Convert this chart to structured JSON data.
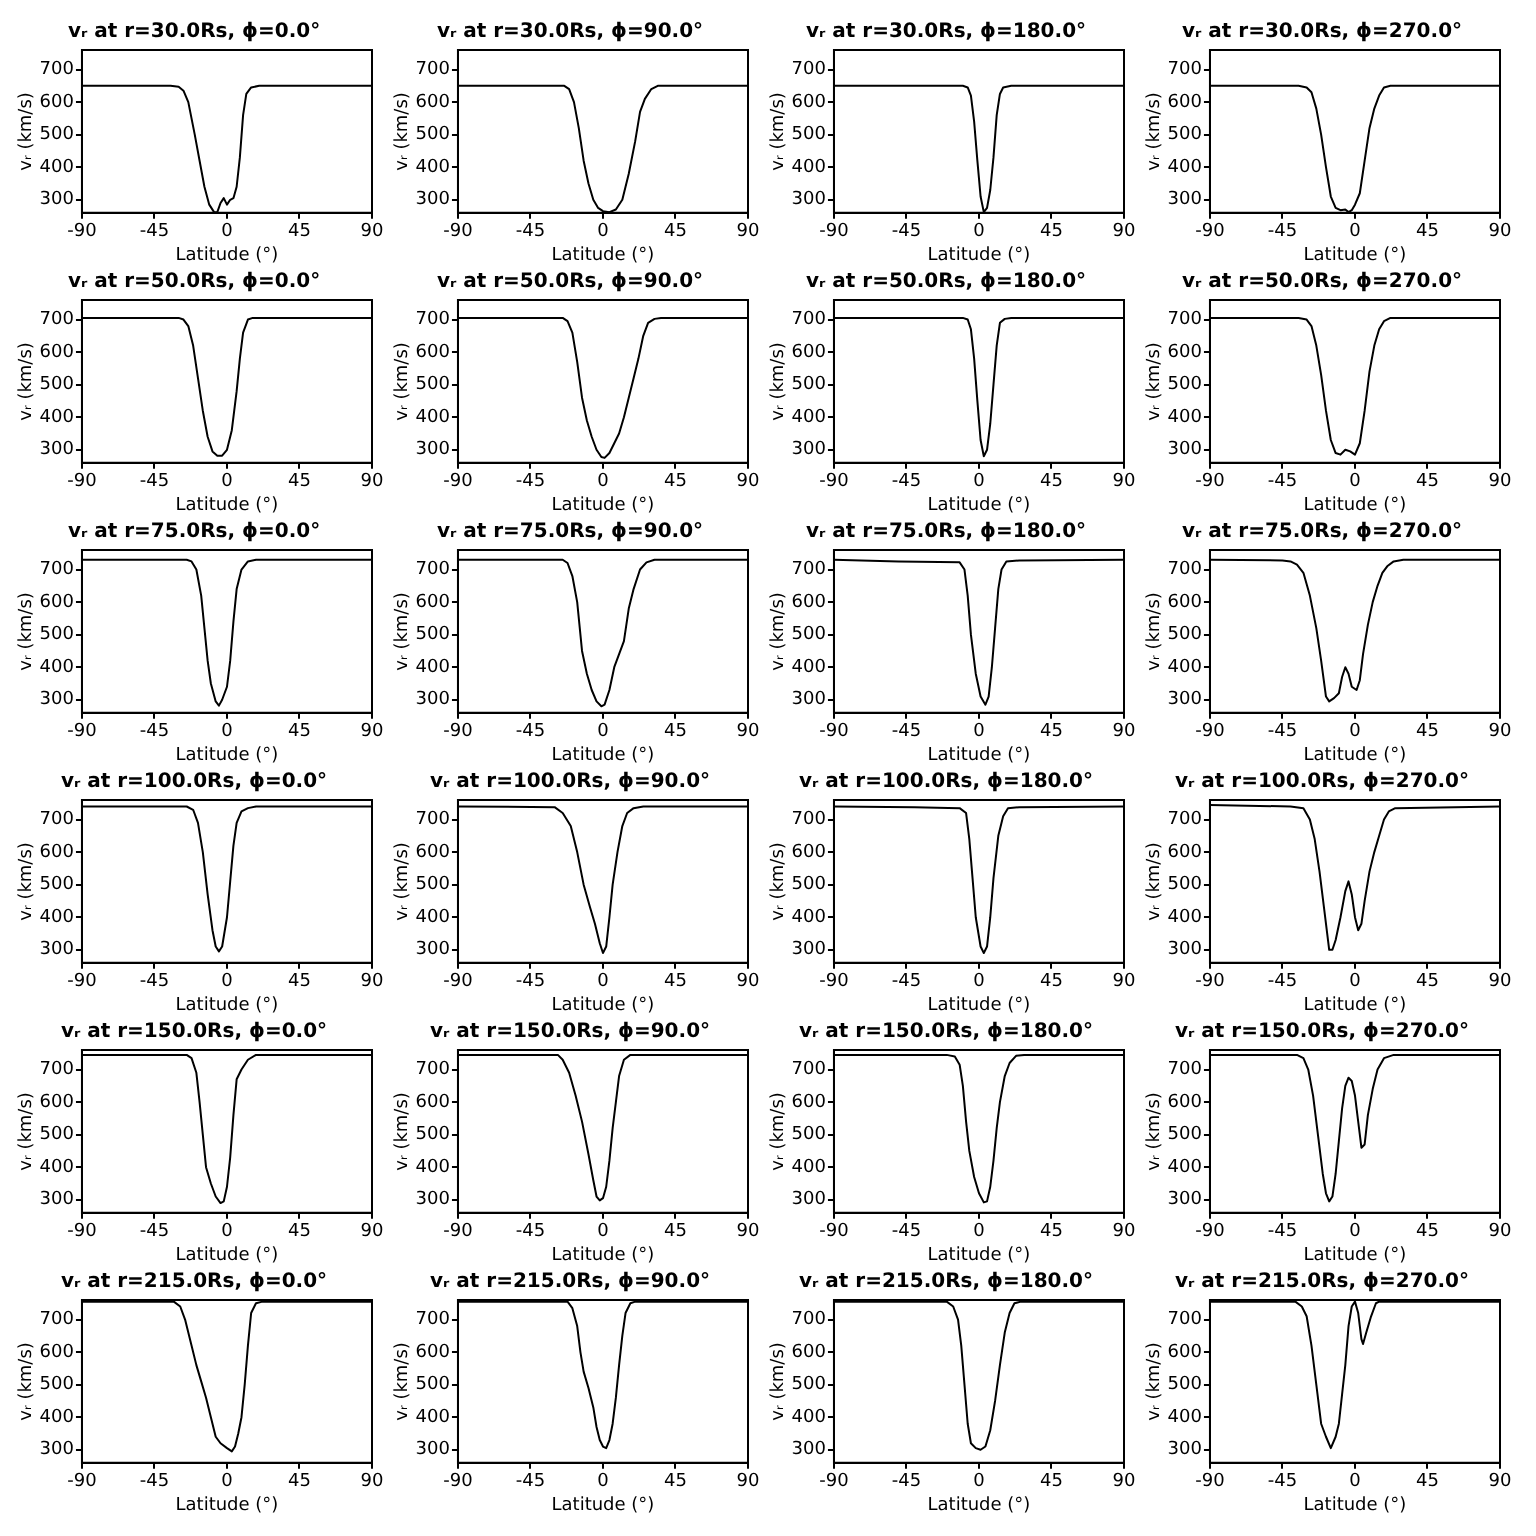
{
  "chart_data": [
    {
      "type": "line",
      "title": "vᵣ at r=30.0Rs, ϕ=0.0°",
      "xlabel": "Latitude (°)",
      "ylabel": "vᵣ (km/s)",
      "xlim": [
        -90,
        90
      ],
      "xticks": [
        -90,
        -45,
        0,
        45,
        90
      ],
      "ylim": [
        260,
        760
      ],
      "yticks": [
        300,
        400,
        500,
        600,
        700
      ],
      "color": "#000000",
      "x": [
        -90,
        -35,
        -30,
        -27,
        -24,
        -20,
        -17,
        -14,
        -11,
        -8,
        -6,
        -4,
        -2,
        0,
        2,
        4,
        6,
        8,
        10,
        12,
        15,
        20,
        90
      ],
      "values": [
        650,
        650,
        647,
        635,
        600,
        500,
        420,
        340,
        285,
        262,
        262,
        290,
        305,
        285,
        300,
        305,
        340,
        430,
        560,
        625,
        645,
        650,
        650
      ]
    },
    {
      "type": "line",
      "title": "vᵣ at r=30.0Rs, ϕ=90.0°",
      "xlabel": "Latitude (°)",
      "ylabel": "vᵣ (km/s)",
      "xlim": [
        -90,
        90
      ],
      "xticks": [
        -90,
        -45,
        0,
        45,
        90
      ],
      "ylim": [
        260,
        760
      ],
      "yticks": [
        300,
        400,
        500,
        600,
        700
      ],
      "color": "#000000",
      "x": [
        -90,
        -24,
        -21,
        -18,
        -15,
        -12,
        -9,
        -6,
        -3,
        0,
        4,
        8,
        12,
        16,
        20,
        23,
        26,
        30,
        34,
        90
      ],
      "values": [
        650,
        650,
        640,
        600,
        520,
        420,
        350,
        300,
        275,
        265,
        262,
        270,
        300,
        380,
        480,
        570,
        610,
        640,
        650,
        650
      ]
    },
    {
      "type": "line",
      "title": "vᵣ at r=30.0Rs, ϕ=180.0°",
      "xlabel": "Latitude (°)",
      "ylabel": "vᵣ (km/s)",
      "xlim": [
        -90,
        90
      ],
      "xticks": [
        -90,
        -45,
        0,
        45,
        90
      ],
      "ylim": [
        260,
        760
      ],
      "yticks": [
        300,
        400,
        500,
        600,
        700
      ],
      "color": "#000000",
      "x": [
        -90,
        -10,
        -7,
        -5,
        -3,
        -1,
        1,
        3,
        5,
        7,
        9,
        11,
        13,
        15,
        20,
        90
      ],
      "values": [
        650,
        650,
        645,
        620,
        540,
        420,
        310,
        262,
        275,
        330,
        430,
        560,
        625,
        645,
        650,
        650
      ]
    },
    {
      "type": "line",
      "title": "vᵣ at r=30.0Rs, ϕ=270.0°",
      "xlabel": "Latitude (°)",
      "ylabel": "vᵣ (km/s)",
      "xlim": [
        -90,
        90
      ],
      "xticks": [
        -90,
        -45,
        0,
        45,
        90
      ],
      "ylim": [
        260,
        760
      ],
      "yticks": [
        300,
        400,
        500,
        600,
        700
      ],
      "color": "#000000",
      "x": [
        -90,
        -35,
        -30,
        -27,
        -24,
        -21,
        -18,
        -15,
        -12,
        -9,
        -6,
        -4,
        -2,
        0,
        3,
        6,
        9,
        12,
        15,
        18,
        22,
        90
      ],
      "values": [
        650,
        650,
        645,
        630,
        580,
        500,
        400,
        310,
        275,
        268,
        270,
        262,
        268,
        285,
        320,
        420,
        520,
        580,
        620,
        645,
        650,
        650
      ]
    },
    {
      "type": "line",
      "title": "vᵣ at r=50.0Rs, ϕ=0.0°",
      "xlabel": "Latitude (°)",
      "ylabel": "vᵣ (km/s)",
      "xlim": [
        -90,
        90
      ],
      "xticks": [
        -90,
        -45,
        0,
        45,
        90
      ],
      "ylim": [
        260,
        760
      ],
      "yticks": [
        300,
        400,
        500,
        600,
        700
      ],
      "color": "#000000",
      "x": [
        -90,
        -30,
        -27,
        -24,
        -21,
        -18,
        -15,
        -12,
        -9,
        -6,
        -3,
        0,
        3,
        6,
        8,
        10,
        13,
        16,
        90
      ],
      "values": [
        705,
        705,
        700,
        680,
        620,
        520,
        420,
        340,
        295,
        282,
        282,
        300,
        360,
        480,
        580,
        660,
        700,
        705,
        705
      ]
    },
    {
      "type": "line",
      "title": "vᵣ at r=50.0Rs, ϕ=90.0°",
      "xlabel": "Latitude (°)",
      "ylabel": "vᵣ (km/s)",
      "xlim": [
        -90,
        90
      ],
      "xticks": [
        -90,
        -45,
        0,
        45,
        90
      ],
      "ylim": [
        260,
        760
      ],
      "yticks": [
        300,
        400,
        500,
        600,
        700
      ],
      "color": "#000000",
      "x": [
        -90,
        -25,
        -22,
        -19,
        -16,
        -13,
        -10,
        -7,
        -4,
        -1,
        1,
        4,
        7,
        10,
        13,
        16,
        19,
        22,
        25,
        28,
        32,
        36,
        90
      ],
      "values": [
        705,
        705,
        695,
        660,
        570,
        460,
        390,
        340,
        300,
        278,
        275,
        290,
        320,
        350,
        400,
        460,
        520,
        580,
        650,
        690,
        702,
        705,
        705
      ]
    },
    {
      "type": "line",
      "title": "vᵣ at r=50.0Rs, ϕ=180.0°",
      "xlabel": "Latitude (°)",
      "ylabel": "vᵣ (km/s)",
      "xlim": [
        -90,
        90
      ],
      "xticks": [
        -90,
        -45,
        0,
        45,
        90
      ],
      "ylim": [
        260,
        760
      ],
      "yticks": [
        300,
        400,
        500,
        600,
        700
      ],
      "color": "#000000",
      "x": [
        -90,
        -10,
        -7,
        -5,
        -3,
        -1,
        1,
        3,
        5,
        7,
        9,
        11,
        13,
        16,
        20,
        90
      ],
      "values": [
        705,
        705,
        700,
        670,
        580,
        450,
        330,
        280,
        300,
        380,
        500,
        620,
        690,
        702,
        705,
        705
      ]
    },
    {
      "type": "line",
      "title": "vᵣ at r=50.0Rs, ϕ=270.0°",
      "xlabel": "Latitude (°)",
      "ylabel": "vᵣ (km/s)",
      "xlim": [
        -90,
        90
      ],
      "xticks": [
        -90,
        -45,
        0,
        45,
        90
      ],
      "ylim": [
        260,
        760
      ],
      "yticks": [
        300,
        400,
        500,
        600,
        700
      ],
      "color": "#000000",
      "x": [
        -90,
        -35,
        -30,
        -27,
        -24,
        -21,
        -18,
        -15,
        -12,
        -9,
        -6,
        -3,
        0,
        3,
        6,
        9,
        12,
        15,
        18,
        22,
        90
      ],
      "values": [
        705,
        705,
        700,
        680,
        620,
        530,
        420,
        330,
        290,
        285,
        300,
        295,
        285,
        320,
        420,
        540,
        620,
        670,
        695,
        705,
        705
      ]
    },
    {
      "type": "line",
      "title": "vᵣ at r=75.0Rs, ϕ=0.0°",
      "xlabel": "Latitude (°)",
      "ylabel": "vᵣ (km/s)",
      "xlim": [
        -90,
        90
      ],
      "xticks": [
        -90,
        -45,
        0,
        45,
        90
      ],
      "ylim": [
        260,
        760
      ],
      "yticks": [
        300,
        400,
        500,
        600,
        700
      ],
      "color": "#000000",
      "x": [
        -90,
        -25,
        -22,
        -19,
        -16,
        -14,
        -12,
        -10,
        -7,
        -5,
        -3,
        0,
        2,
        4,
        6,
        9,
        13,
        18,
        90
      ],
      "values": [
        730,
        730,
        725,
        700,
        620,
        520,
        420,
        350,
        295,
        282,
        300,
        340,
        420,
        540,
        640,
        700,
        725,
        730,
        730
      ]
    },
    {
      "type": "line",
      "title": "vᵣ at r=75.0Rs, ϕ=90.0°",
      "xlabel": "Latitude (°)",
      "ylabel": "vᵣ (km/s)",
      "xlim": [
        -90,
        90
      ],
      "xticks": [
        -90,
        -45,
        0,
        45,
        90
      ],
      "ylim": [
        260,
        760
      ],
      "yticks": [
        300,
        400,
        500,
        600,
        700
      ],
      "color": "#000000",
      "x": [
        -90,
        -25,
        -22,
        -19,
        -16,
        -13,
        -10,
        -7,
        -4,
        -1,
        1,
        4,
        7,
        10,
        13,
        16,
        19,
        23,
        27,
        32,
        90
      ],
      "values": [
        730,
        730,
        720,
        680,
        600,
        450,
        380,
        330,
        295,
        280,
        285,
        330,
        400,
        440,
        480,
        580,
        640,
        700,
        722,
        730,
        730
      ]
    },
    {
      "type": "line",
      "title": "vᵣ at r=75.0Rs, ϕ=180.0°",
      "xlabel": "Latitude (°)",
      "ylabel": "vᵣ (km/s)",
      "xlim": [
        -90,
        90
      ],
      "xticks": [
        -90,
        -45,
        0,
        45,
        90
      ],
      "ylim": [
        260,
        760
      ],
      "yticks": [
        300,
        400,
        500,
        600,
        700
      ],
      "color": "#000000",
      "x": [
        -90,
        -50,
        -12,
        -9,
        -7,
        -5,
        -2,
        1,
        4,
        6,
        8,
        10,
        12,
        14,
        17,
        25,
        90
      ],
      "values": [
        730,
        725,
        722,
        700,
        620,
        500,
        380,
        310,
        285,
        310,
        400,
        520,
        640,
        700,
        725,
        728,
        730
      ]
    },
    {
      "type": "line",
      "title": "vᵣ at r=75.0Rs, ϕ=270.0°",
      "xlabel": "Latitude (°)",
      "ylabel": "vᵣ (km/s)",
      "xlim": [
        -90,
        90
      ],
      "xticks": [
        -90,
        -45,
        0,
        45,
        90
      ],
      "ylim": [
        260,
        760
      ],
      "yticks": [
        300,
        400,
        500,
        600,
        700
      ],
      "color": "#000000",
      "x": [
        -90,
        -45,
        -40,
        -36,
        -32,
        -28,
        -24,
        -21,
        -18,
        -16,
        -13,
        -10,
        -8,
        -6,
        -4,
        -2,
        1,
        3,
        5,
        8,
        11,
        14,
        17,
        20,
        24,
        30,
        90
      ],
      "values": [
        730,
        728,
        725,
        715,
        690,
        620,
        520,
        420,
        310,
        295,
        305,
        320,
        370,
        400,
        380,
        340,
        330,
        360,
        440,
        530,
        600,
        650,
        690,
        710,
        725,
        730,
        730
      ]
    },
    {
      "type": "line",
      "title": "vᵣ at r=100.0Rs, ϕ=0.0°",
      "xlabel": "Latitude (°)",
      "ylabel": "vᵣ (km/s)",
      "xlim": [
        -90,
        90
      ],
      "xticks": [
        -90,
        -45,
        0,
        45,
        90
      ],
      "ylim": [
        260,
        760
      ],
      "yticks": [
        300,
        400,
        500,
        600,
        700
      ],
      "color": "#000000",
      "x": [
        -90,
        -25,
        -21,
        -18,
        -15,
        -12,
        -9,
        -7,
        -5,
        -3,
        0,
        2,
        4,
        6,
        9,
        13,
        18,
        90
      ],
      "values": [
        740,
        740,
        730,
        690,
        600,
        470,
        360,
        310,
        295,
        310,
        400,
        510,
        620,
        690,
        725,
        735,
        740,
        740
      ]
    },
    {
      "type": "line",
      "title": "vᵣ at r=100.0Rs, ϕ=90.0°",
      "xlabel": "Latitude (°)",
      "ylabel": "vᵣ (km/s)",
      "xlim": [
        -90,
        90
      ],
      "xticks": [
        -90,
        -45,
        0,
        45,
        90
      ],
      "ylim": [
        260,
        760
      ],
      "yticks": [
        300,
        400,
        500,
        600,
        700
      ],
      "color": "#000000",
      "x": [
        -90,
        -30,
        -25,
        -20,
        -16,
        -12,
        -8,
        -5,
        -2,
        0,
        2,
        4,
        6,
        9,
        12,
        15,
        19,
        25,
        90
      ],
      "values": [
        740,
        738,
        720,
        680,
        600,
        500,
        430,
        380,
        320,
        290,
        310,
        400,
        500,
        600,
        680,
        720,
        735,
        740,
        740
      ]
    },
    {
      "type": "line",
      "title": "vᵣ at r=100.0Rs, ϕ=180.0°",
      "xlabel": "Latitude (°)",
      "ylabel": "vᵣ (km/s)",
      "xlim": [
        -90,
        90
      ],
      "xticks": [
        -90,
        -45,
        0,
        45,
        90
      ],
      "ylim": [
        260,
        760
      ],
      "yticks": [
        300,
        400,
        500,
        600,
        700
      ],
      "color": "#000000",
      "x": [
        -90,
        -40,
        -12,
        -8,
        -6,
        -4,
        -2,
        1,
        3,
        5,
        7,
        9,
        12,
        15,
        18,
        25,
        90
      ],
      "values": [
        740,
        738,
        735,
        720,
        640,
        520,
        400,
        310,
        290,
        310,
        400,
        520,
        650,
        710,
        735,
        738,
        740
      ]
    },
    {
      "type": "line",
      "title": "vᵣ at r=100.0Rs, ϕ=270.0°",
      "xlabel": "Latitude (°)",
      "ylabel": "vᵣ (km/s)",
      "xlim": [
        -90,
        90
      ],
      "xticks": [
        -90,
        -45,
        0,
        45,
        90
      ],
      "ylim": [
        260,
        760
      ],
      "yticks": [
        300,
        400,
        500,
        600,
        700
      ],
      "color": "#000000",
      "x": [
        -90,
        -40,
        -32,
        -28,
        -25,
        -22,
        -19,
        -16,
        -14,
        -12,
        -9,
        -6,
        -4,
        -2,
        0,
        2,
        4,
        6,
        9,
        12,
        15,
        18,
        21,
        25,
        90
      ],
      "values": [
        745,
        740,
        735,
        700,
        640,
        540,
        420,
        300,
        300,
        330,
        400,
        480,
        510,
        470,
        400,
        360,
        380,
        450,
        540,
        600,
        650,
        700,
        725,
        735,
        740
      ]
    },
    {
      "type": "line",
      "title": "vᵣ at r=150.0Rs, ϕ=0.0°",
      "xlabel": "Latitude (°)",
      "ylabel": "vᵣ (km/s)",
      "xlim": [
        -90,
        90
      ],
      "xticks": [
        -90,
        -45,
        0,
        45,
        90
      ],
      "ylim": [
        260,
        760
      ],
      "yticks": [
        300,
        400,
        500,
        600,
        700
      ],
      "color": "#000000",
      "x": [
        -90,
        -25,
        -22,
        -19,
        -17,
        -15,
        -13,
        -10,
        -7,
        -4,
        -2,
        0,
        2,
        4,
        6,
        9,
        13,
        18,
        90
      ],
      "values": [
        745,
        745,
        735,
        690,
        600,
        500,
        400,
        350,
        310,
        290,
        295,
        340,
        430,
        560,
        670,
        700,
        730,
        745,
        745
      ]
    },
    {
      "type": "line",
      "title": "vᵣ at r=150.0Rs, ϕ=90.0°",
      "xlabel": "Latitude (°)",
      "ylabel": "vᵣ (km/s)",
      "xlim": [
        -90,
        90
      ],
      "xticks": [
        -90,
        -45,
        0,
        45,
        90
      ],
      "ylim": [
        260,
        760
      ],
      "yticks": [
        300,
        400,
        500,
        600,
        700
      ],
      "color": "#000000",
      "x": [
        -90,
        -28,
        -25,
        -21,
        -17,
        -13,
        -9,
        -6,
        -4,
        -2,
        0,
        2,
        4,
        6,
        8,
        10,
        13,
        17,
        90
      ],
      "values": [
        745,
        745,
        730,
        690,
        620,
        540,
        440,
        360,
        310,
        298,
        305,
        340,
        420,
        520,
        600,
        680,
        730,
        745,
        745
      ]
    },
    {
      "type": "line",
      "title": "vᵣ at r=150.0Rs, ϕ=180.0°",
      "xlabel": "Latitude (°)",
      "ylabel": "vᵣ (km/s)",
      "xlim": [
        -90,
        90
      ],
      "xticks": [
        -90,
        -45,
        0,
        45,
        90
      ],
      "ylim": [
        260,
        760
      ],
      "yticks": [
        300,
        400,
        500,
        600,
        700
      ],
      "color": "#000000",
      "x": [
        -90,
        -20,
        -15,
        -12,
        -10,
        -8,
        -6,
        -3,
        0,
        3,
        5,
        7,
        9,
        11,
        13,
        16,
        19,
        23,
        28,
        90
      ],
      "values": [
        745,
        745,
        740,
        715,
        650,
        540,
        450,
        370,
        320,
        292,
        295,
        340,
        420,
        520,
        600,
        680,
        720,
        742,
        745,
        745
      ]
    },
    {
      "type": "line",
      "title": "vᵣ at r=150.0Rs, ϕ=270.0°",
      "xlabel": "Latitude (°)",
      "ylabel": "vᵣ (km/s)",
      "xlim": [
        -90,
        90
      ],
      "xticks": [
        -90,
        -45,
        0,
        45,
        90
      ],
      "ylim": [
        260,
        760
      ],
      "yticks": [
        300,
        400,
        500,
        600,
        700
      ],
      "color": "#000000",
      "x": [
        -90,
        -36,
        -32,
        -29,
        -26,
        -23,
        -20,
        -18,
        -16,
        -14,
        -12,
        -10,
        -8,
        -6,
        -4,
        -2,
        0,
        2,
        4,
        6,
        8,
        11,
        14,
        18,
        24,
        90
      ],
      "values": [
        745,
        745,
        735,
        700,
        620,
        500,
        380,
        320,
        295,
        310,
        380,
        480,
        580,
        650,
        675,
        665,
        620,
        540,
        460,
        470,
        560,
        640,
        700,
        735,
        745,
        745
      ]
    },
    {
      "type": "line",
      "title": "vᵣ at r=215.0Rs, ϕ=0.0°",
      "xlabel": "Latitude (°)",
      "ylabel": "vᵣ (km/s)",
      "xlim": [
        -90,
        90
      ],
      "xticks": [
        -90,
        -45,
        0,
        45,
        90
      ],
      "ylim": [
        260,
        760
      ],
      "yticks": [
        300,
        400,
        500,
        600,
        700
      ],
      "color": "#000000",
      "x": [
        -90,
        -33,
        -29,
        -26,
        -22,
        -19,
        -16,
        -13,
        -10,
        -7,
        -4,
        0,
        3,
        5,
        7,
        9,
        11,
        13,
        15,
        18,
        22,
        90
      ],
      "values": [
        755,
        755,
        740,
        700,
        620,
        560,
        510,
        460,
        400,
        340,
        320,
        305,
        295,
        310,
        350,
        400,
        500,
        620,
        720,
        750,
        755,
        755
      ]
    },
    {
      "type": "line",
      "title": "vᵣ at r=215.0Rs, ϕ=90.0°",
      "xlabel": "Latitude (°)",
      "ylabel": "vᵣ (km/s)",
      "xlim": [
        -90,
        90
      ],
      "xticks": [
        -90,
        -45,
        0,
        45,
        90
      ],
      "ylim": [
        260,
        760
      ],
      "yticks": [
        300,
        400,
        500,
        600,
        700
      ],
      "color": "#000000",
      "x": [
        -90,
        -22,
        -19,
        -16,
        -14,
        -12,
        -9,
        -6,
        -4,
        -2,
        0,
        2,
        4,
        6,
        8,
        10,
        12,
        14,
        17,
        20,
        90
      ],
      "values": [
        755,
        755,
        735,
        680,
        600,
        540,
        490,
        430,
        370,
        330,
        310,
        305,
        330,
        380,
        460,
        560,
        650,
        720,
        750,
        755,
        755
      ]
    },
    {
      "type": "line",
      "title": "vᵣ at r=215.0Rs, ϕ=180.0°",
      "xlabel": "Latitude (°)",
      "ylabel": "vᵣ (km/s)",
      "xlim": [
        -90,
        90
      ],
      "xticks": [
        -90,
        -45,
        0,
        45,
        90
      ],
      "ylim": [
        260,
        760
      ],
      "yticks": [
        300,
        400,
        500,
        600,
        700
      ],
      "color": "#000000",
      "x": [
        -90,
        -20,
        -16,
        -13,
        -11,
        -9,
        -7,
        -5,
        -2,
        1,
        4,
        7,
        10,
        13,
        16,
        19,
        22,
        26,
        90
      ],
      "values": [
        755,
        755,
        740,
        700,
        620,
        500,
        380,
        320,
        305,
        300,
        310,
        360,
        450,
        560,
        660,
        720,
        750,
        755,
        755
      ]
    },
    {
      "type": "line",
      "title": "vᵣ at r=215.0Rs, ϕ=270.0°",
      "xlabel": "Latitude (°)",
      "ylabel": "vᵣ (km/s)",
      "xlim": [
        -90,
        90
      ],
      "xticks": [
        -90,
        -45,
        0,
        45,
        90
      ],
      "ylim": [
        260,
        760
      ],
      "yticks": [
        300,
        400,
        500,
        600,
        700
      ],
      "color": "#000000",
      "x": [
        -90,
        -37,
        -33,
        -30,
        -27,
        -24,
        -21,
        -18,
        -15,
        -12,
        -10,
        -8,
        -6,
        -4,
        -2,
        0,
        2,
        4,
        5,
        7,
        10,
        13,
        15,
        90
      ],
      "values": [
        755,
        755,
        740,
        710,
        620,
        500,
        380,
        340,
        305,
        340,
        380,
        470,
        560,
        680,
        740,
        755,
        720,
        640,
        625,
        660,
        710,
        750,
        755,
        755
      ]
    }
  ]
}
